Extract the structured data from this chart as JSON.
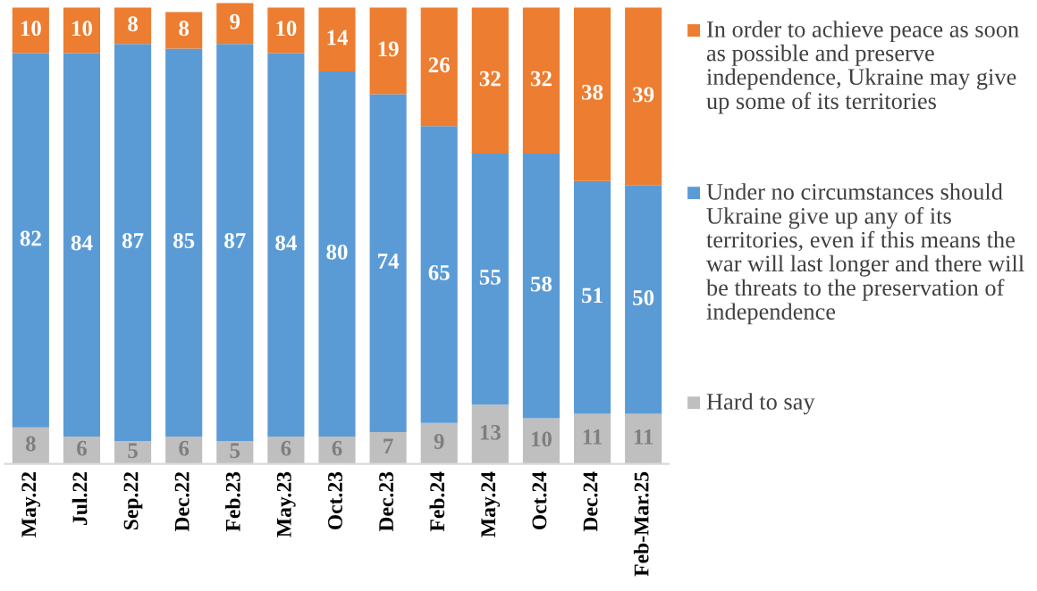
{
  "chart_data": {
    "type": "bar",
    "stacked": true,
    "data_labels": true,
    "legend": "right",
    "grid": false,
    "categories": [
      "May.22",
      "Jul.22",
      "Sep.22",
      "Dec.22",
      "Feb.23",
      "May.23",
      "Oct.23",
      "Dec.23",
      "Feb.24",
      "May.24",
      "Oct.24",
      "Dec.24",
      "Feb-Mar.25"
    ],
    "series": [
      {
        "name": "Hard to say",
        "color": "#bfbfbf",
        "values": [
          8,
          6,
          5,
          6,
          5,
          6,
          6,
          7,
          9,
          13,
          10,
          11,
          11
        ]
      },
      {
        "name": "Under no circumstances should Ukraine give up any of its territories, even if this means the war will last longer and there will be threats to the preservation of independence",
        "color": "#5b9bd5",
        "values": [
          82,
          84,
          87,
          85,
          87,
          84,
          80,
          74,
          65,
          55,
          58,
          51,
          50
        ]
      },
      {
        "name": "In order to achieve peace as soon as possible and preserve independence, Ukraine may give up some of its territories",
        "color": "#ed7d31",
        "values": [
          10,
          10,
          8,
          8,
          9,
          10,
          14,
          19,
          26,
          32,
          32,
          38,
          39
        ]
      }
    ]
  }
}
